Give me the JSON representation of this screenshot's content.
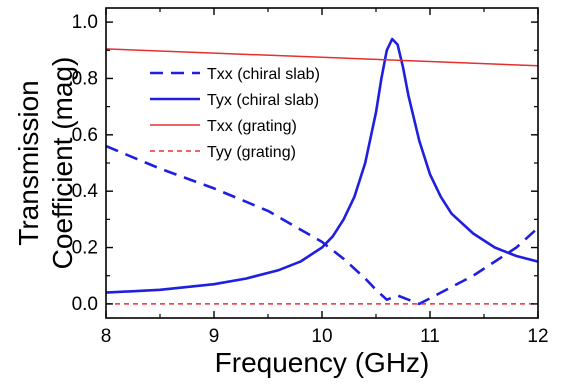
{
  "chart_data": {
    "type": "line",
    "title": "",
    "xlabel": "Frequency (GHz)",
    "ylabel_lines": [
      "Transmission",
      "Coefficient (mag)"
    ],
    "xlim": [
      8,
      12
    ],
    "ylim": [
      -0.05,
      1.05
    ],
    "xticks": [
      8,
      9,
      10,
      11,
      12
    ],
    "xtick_labels": [
      "8",
      "9",
      "10",
      "11",
      "12"
    ],
    "yticks": [
      0.0,
      0.2,
      0.4,
      0.6,
      0.8,
      1.0
    ],
    "ytick_labels": [
      "0.0",
      "0.2",
      "0.4",
      "0.6",
      "0.8",
      "1.0"
    ],
    "grid": false,
    "legend_position": "left",
    "series": [
      {
        "name": "Txx (chiral slab)",
        "color": "#1f1fe0",
        "dash": "dashed",
        "width": "thick",
        "x": [
          8.0,
          8.5,
          9.0,
          9.5,
          10.0,
          10.2,
          10.4,
          10.5,
          10.6,
          10.7,
          10.8,
          10.9,
          11.0,
          11.2,
          11.4,
          11.6,
          11.8,
          12.0
        ],
        "y": [
          0.56,
          0.48,
          0.41,
          0.33,
          0.22,
          0.16,
          0.09,
          0.05,
          0.015,
          0.03,
          0.015,
          0.0,
          0.02,
          0.06,
          0.1,
          0.15,
          0.2,
          0.27
        ]
      },
      {
        "name": "Tyx (chiral slab)",
        "color": "#1f1fe0",
        "dash": "solid",
        "width": "thick",
        "x": [
          8.0,
          8.5,
          9.0,
          9.3,
          9.6,
          9.8,
          10.0,
          10.1,
          10.2,
          10.3,
          10.4,
          10.5,
          10.55,
          10.6,
          10.65,
          10.7,
          10.75,
          10.8,
          10.9,
          11.0,
          11.1,
          11.2,
          11.4,
          11.6,
          11.8,
          12.0
        ],
        "y": [
          0.04,
          0.05,
          0.07,
          0.09,
          0.12,
          0.15,
          0.2,
          0.24,
          0.3,
          0.38,
          0.5,
          0.68,
          0.8,
          0.9,
          0.94,
          0.92,
          0.84,
          0.74,
          0.58,
          0.46,
          0.38,
          0.32,
          0.25,
          0.2,
          0.17,
          0.15
        ]
      },
      {
        "name": "Txx (grating)",
        "color": "#e53030",
        "dash": "solid",
        "width": "thin",
        "x": [
          8.0,
          9.0,
          10.0,
          11.0,
          12.0
        ],
        "y": [
          0.905,
          0.89,
          0.875,
          0.86,
          0.845
        ]
      },
      {
        "name": "Tyy (grating)",
        "color": "#e53030",
        "dash": "dashed",
        "width": "thin",
        "x": [
          8.0,
          12.0
        ],
        "y": [
          0.0,
          0.0
        ]
      }
    ]
  }
}
